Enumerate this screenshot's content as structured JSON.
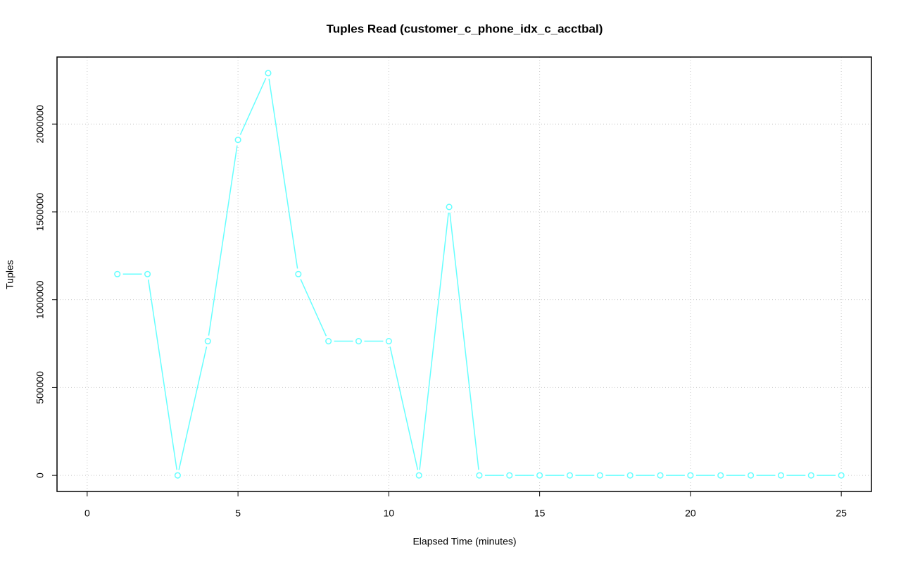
{
  "chart_data": {
    "type": "line",
    "title": "Tuples Read (customer_c_phone_idx_c_acctbal)",
    "xlabel": "Elapsed Time (minutes)",
    "ylabel": "Tuples",
    "x": [
      1,
      2,
      3,
      4,
      5,
      6,
      7,
      8,
      9,
      10,
      11,
      12,
      13,
      14,
      15,
      16,
      17,
      18,
      19,
      20,
      21,
      22,
      23,
      24,
      25
    ],
    "series": [
      {
        "name": "Tuples",
        "color": "#66ffff",
        "values": [
          1146000,
          1146000,
          0,
          764000,
          1910000,
          2290000,
          1146000,
          764000,
          764000,
          764000,
          0,
          1528000,
          0,
          0,
          0,
          0,
          0,
          0,
          0,
          0,
          0,
          0,
          0,
          0,
          0
        ]
      }
    ],
    "xlim": [
      -1,
      26
    ],
    "xticks": [
      0,
      5,
      10,
      15,
      20,
      25
    ],
    "ylim": [
      -91600,
      2381600
    ],
    "yticks": [
      0,
      500000,
      1000000,
      1500000,
      2000000
    ],
    "grid": true
  }
}
